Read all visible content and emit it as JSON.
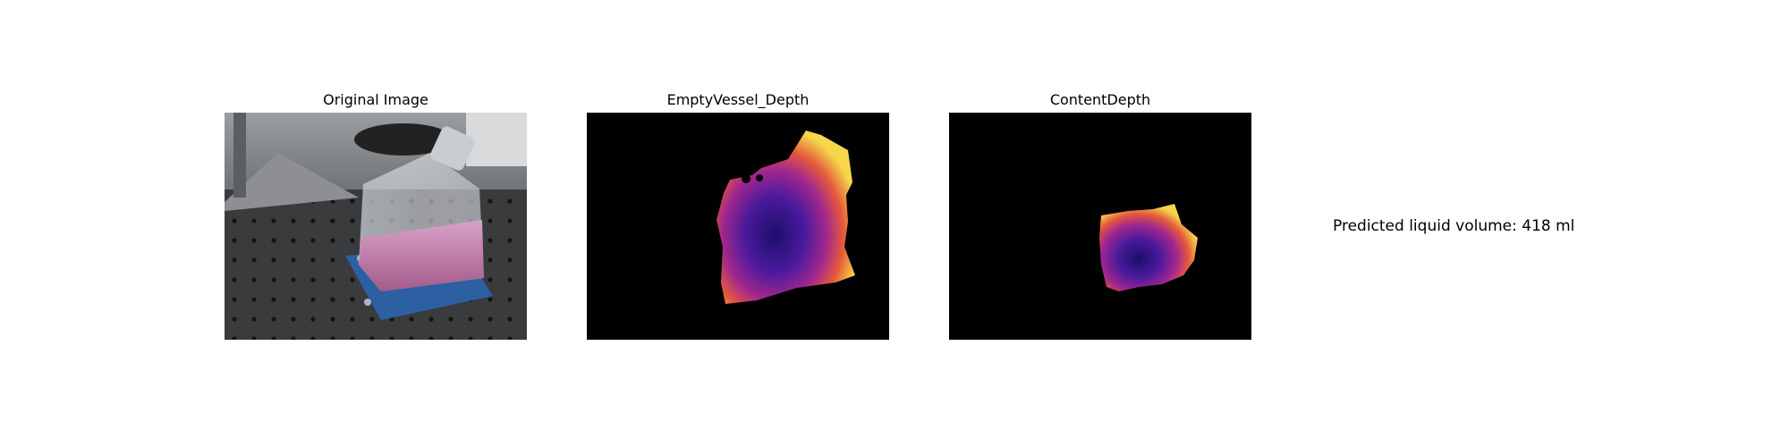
{
  "panels": [
    {
      "title": "Original Image"
    },
    {
      "title": "EmptyVessel_Depth"
    },
    {
      "title": "ContentDepth"
    }
  ],
  "result": {
    "label": "Predicted liquid volume:",
    "value": "418",
    "unit": "ml"
  },
  "colors": {
    "background": "#ffffff",
    "depth_background": "#000000",
    "plasma_low": "#2a1180",
    "plasma_mid": "#c7277e",
    "plasma_high": "#f4e05a",
    "mount_blue": "#2d5fa3",
    "liquid_pink": "#c789b8"
  }
}
